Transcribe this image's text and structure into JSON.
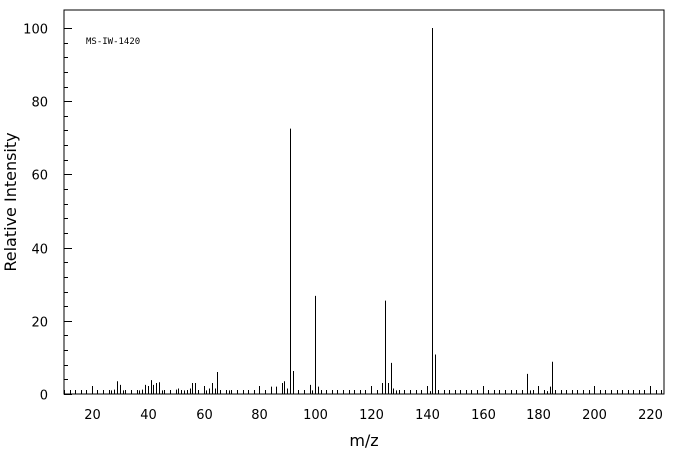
{
  "chart_data": {
    "type": "bar",
    "title": "MS-IW-1420",
    "xlabel": "m/z",
    "ylabel": "Relative Intensity",
    "xlim": [
      10,
      225
    ],
    "ylim": [
      0,
      100
    ],
    "x_ticks": [
      20,
      40,
      60,
      80,
      100,
      120,
      140,
      160,
      180,
      200,
      220
    ],
    "y_ticks": [
      0,
      20,
      40,
      60,
      80,
      100
    ],
    "grid": false,
    "series": [
      {
        "x": [
          26,
          27,
          28,
          29,
          30,
          31,
          37,
          38,
          39,
          40,
          41,
          42,
          43,
          44,
          45,
          50,
          51,
          52,
          53,
          55,
          56,
          57,
          58,
          61,
          62,
          63,
          64,
          65,
          66,
          69,
          74,
          76,
          84,
          86,
          88,
          89,
          90,
          91,
          92,
          98,
          99,
          100,
          101,
          112,
          124,
          125,
          126,
          127,
          128,
          129,
          140,
          141,
          142,
          143,
          144,
          176,
          177,
          183,
          184,
          185,
          186
        ],
        "values": [
          0.5,
          1.0,
          1.2,
          3.5,
          2.5,
          1.0,
          1.0,
          1.2,
          2.5,
          1.5,
          3.8,
          2.5,
          3.0,
          3.2,
          1.0,
          1.2,
          1.5,
          1.0,
          1.0,
          1.5,
          3.0,
          3.0,
          1.0,
          1.0,
          1.5,
          3.0,
          1.5,
          6.0,
          1.0,
          1.0,
          0.8,
          0.8,
          2.0,
          2.0,
          3.0,
          3.5,
          1.5,
          72.5,
          6.3,
          2.5,
          1.0,
          26.8,
          2.0,
          0.8,
          3.0,
          25.5,
          3.0,
          8.5,
          1.5,
          1.0,
          1.2,
          0.8,
          100.0,
          10.8,
          1.0,
          5.5,
          1.0,
          0.8,
          2.0,
          8.8,
          1.0
        ]
      }
    ]
  }
}
